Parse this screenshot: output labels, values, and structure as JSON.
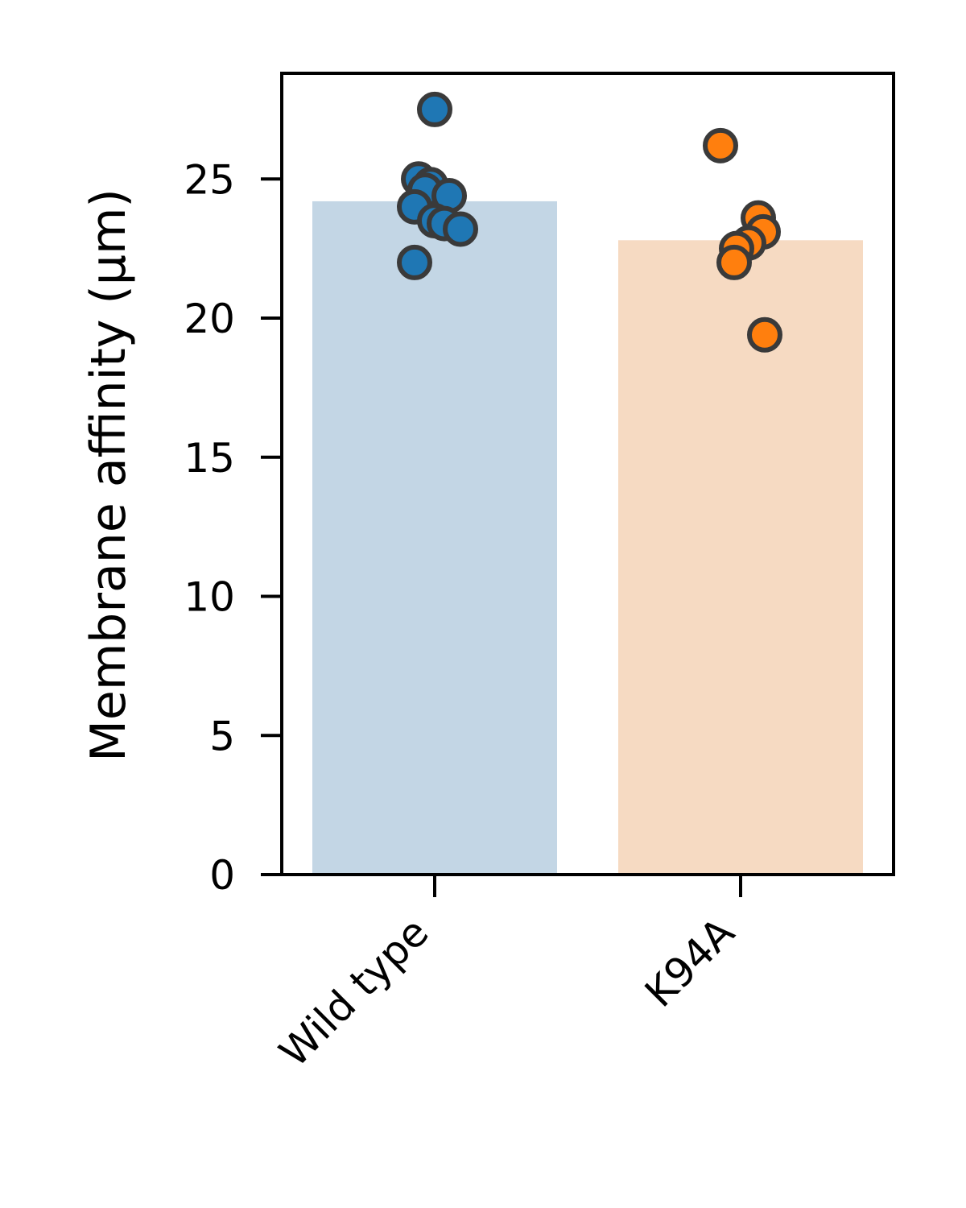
{
  "chart_data": {
    "type": "bar",
    "title": "",
    "xlabel": "",
    "ylabel": "Membrane affinity (µm)",
    "categories": [
      "Wild type",
      "K94A"
    ],
    "values": [
      24.2,
      22.8
    ],
    "ylim": [
      0,
      28.8
    ],
    "yticks": [
      0,
      5,
      10,
      15,
      20,
      25
    ],
    "grid": false,
    "bar_colors": [
      "#c3d6e5",
      "#f6dac2"
    ],
    "point_colors": [
      "#1f77b4",
      "#ff7f0e"
    ],
    "point_edge_color": "#3a3a3a",
    "points": [
      {
        "category": "Wild type",
        "y": [
          27.5,
          25.0,
          24.8,
          24.6,
          24.4,
          24.0,
          23.5,
          23.4,
          23.2,
          22.0
        ]
      },
      {
        "category": "K94A",
        "y": [
          26.2,
          23.6,
          23.1,
          22.7,
          22.5,
          22.0,
          19.4
        ]
      }
    ]
  }
}
